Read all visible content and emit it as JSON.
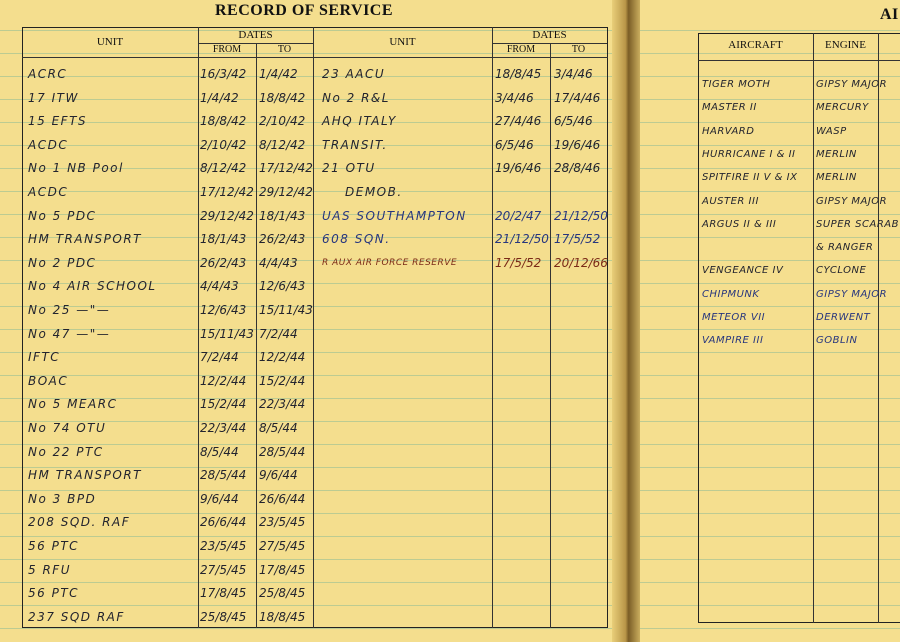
{
  "left_page": {
    "title": "RECORD OF SERVICE",
    "headers": {
      "unit": "UNIT",
      "dates": "DATES",
      "from": "FROM",
      "to": "TO"
    },
    "col1": [
      {
        "unit": "ACRC",
        "from": "16/3/42",
        "to": "1/4/42"
      },
      {
        "unit": "17 ITW",
        "from": "1/4/42",
        "to": "18/8/42"
      },
      {
        "unit": "15 EFTS",
        "from": "18/8/42",
        "to": "2/10/42"
      },
      {
        "unit": "ACDC",
        "from": "2/10/42",
        "to": "8/12/42"
      },
      {
        "unit": "No 1 NB Pool",
        "from": "8/12/42",
        "to": "17/12/42"
      },
      {
        "unit": "ACDC",
        "from": "17/12/42",
        "to": "29/12/42"
      },
      {
        "unit": "No 5 PDC",
        "from": "29/12/42",
        "to": "18/1/43"
      },
      {
        "unit": "HM TRANSPORT",
        "from": "18/1/43",
        "to": "26/2/43"
      },
      {
        "unit": "No 2 PDC",
        "from": "26/2/43",
        "to": "4/4/43"
      },
      {
        "unit": "No 4 AIR SCHOOL",
        "from": "4/4/43",
        "to": "12/6/43"
      },
      {
        "unit": "No 25  —\"—",
        "from": "12/6/43",
        "to": "15/11/43"
      },
      {
        "unit": "No 47  —\"—",
        "from": "15/11/43",
        "to": "7/2/44"
      },
      {
        "unit": "IFTC",
        "from": "7/2/44",
        "to": "12/2/44"
      },
      {
        "unit": "BOAC",
        "from": "12/2/44",
        "to": "15/2/44"
      },
      {
        "unit": "No 5 MEARC",
        "from": "15/2/44",
        "to": "22/3/44"
      },
      {
        "unit": "No 74 OTU",
        "from": "22/3/44",
        "to": "8/5/44"
      },
      {
        "unit": "No 22 PTC",
        "from": "8/5/44",
        "to": "28/5/44"
      },
      {
        "unit": "HM TRANSPORT",
        "from": "28/5/44",
        "to": "9/6/44"
      },
      {
        "unit": "No 3 BPD",
        "from": "9/6/44",
        "to": "26/6/44"
      },
      {
        "unit": "208 SQD. RAF",
        "from": "26/6/44",
        "to": "23/5/45"
      },
      {
        "unit": "56 PTC",
        "from": "23/5/45",
        "to": "27/5/45"
      },
      {
        "unit": "5 RFU",
        "from": "27/5/45",
        "to": "17/8/45"
      },
      {
        "unit": "56 PTC",
        "from": "17/8/45",
        "to": "25/8/45"
      },
      {
        "unit": "237 SQD RAF",
        "from": "25/8/45",
        "to": "18/8/45"
      }
    ],
    "col2": [
      {
        "unit": "23 AACU",
        "from": "18/8/45",
        "to": "3/4/46"
      },
      {
        "unit": "No 2 R&L",
        "from": "3/4/46",
        "to": "17/4/46"
      },
      {
        "unit": "AHQ ITALY",
        "from": "27/4/46",
        "to": "6/5/46"
      },
      {
        "unit": "TRANSIT.",
        "from": "6/5/46",
        "to": "19/6/46"
      },
      {
        "unit": "21 OTU",
        "from": "19/6/46",
        "to": "28/8/46"
      },
      {
        "unit": "DEMOB.",
        "from": "",
        "to": ""
      },
      {
        "unit": "UAS SOUTHAMPTON",
        "from": "20/2/47",
        "to": "21/12/50"
      },
      {
        "unit": "608 SQN.",
        "from": "21/12/50",
        "to": "17/5/52"
      },
      {
        "unit": "R AUX AIR FORCE RESERVE",
        "from": "17/5/52",
        "to": "20/12/66"
      }
    ]
  },
  "right_page": {
    "title_partial": "AI",
    "headers": {
      "aircraft": "AIRCRAFT",
      "engine": "ENGINE"
    },
    "rows": [
      {
        "aircraft": "TIGER MOTH",
        "engine": "GIPSY MAJOR"
      },
      {
        "aircraft": "MASTER II",
        "engine": "MERCURY"
      },
      {
        "aircraft": "HARVARD",
        "engine": "WASP"
      },
      {
        "aircraft": "HURRICANE I & II",
        "engine": "MERLIN"
      },
      {
        "aircraft": "SPITFIRE II V & IX",
        "engine": "MERLIN"
      },
      {
        "aircraft": "AUSTER III",
        "engine": "GIPSY MAJOR"
      },
      {
        "aircraft": "ARGUS II & III",
        "engine": "SUPER SCARAB"
      },
      {
        "aircraft": "",
        "engine": "& RANGER"
      },
      {
        "aircraft": "VENGEANCE IV",
        "engine": "CYCLONE"
      },
      {
        "aircraft": "CHIPMUNK",
        "engine": "GIPSY MAJOR"
      },
      {
        "aircraft": "METEOR VII",
        "engine": "DERWENT"
      },
      {
        "aircraft": "VAMPIRE III",
        "engine": "GOBLIN"
      }
    ]
  },
  "colors": {
    "paper": "#f4de8e",
    "ink": "#23242e",
    "blue_ink": "#27367e",
    "red_ink": "#7a2a18"
  }
}
